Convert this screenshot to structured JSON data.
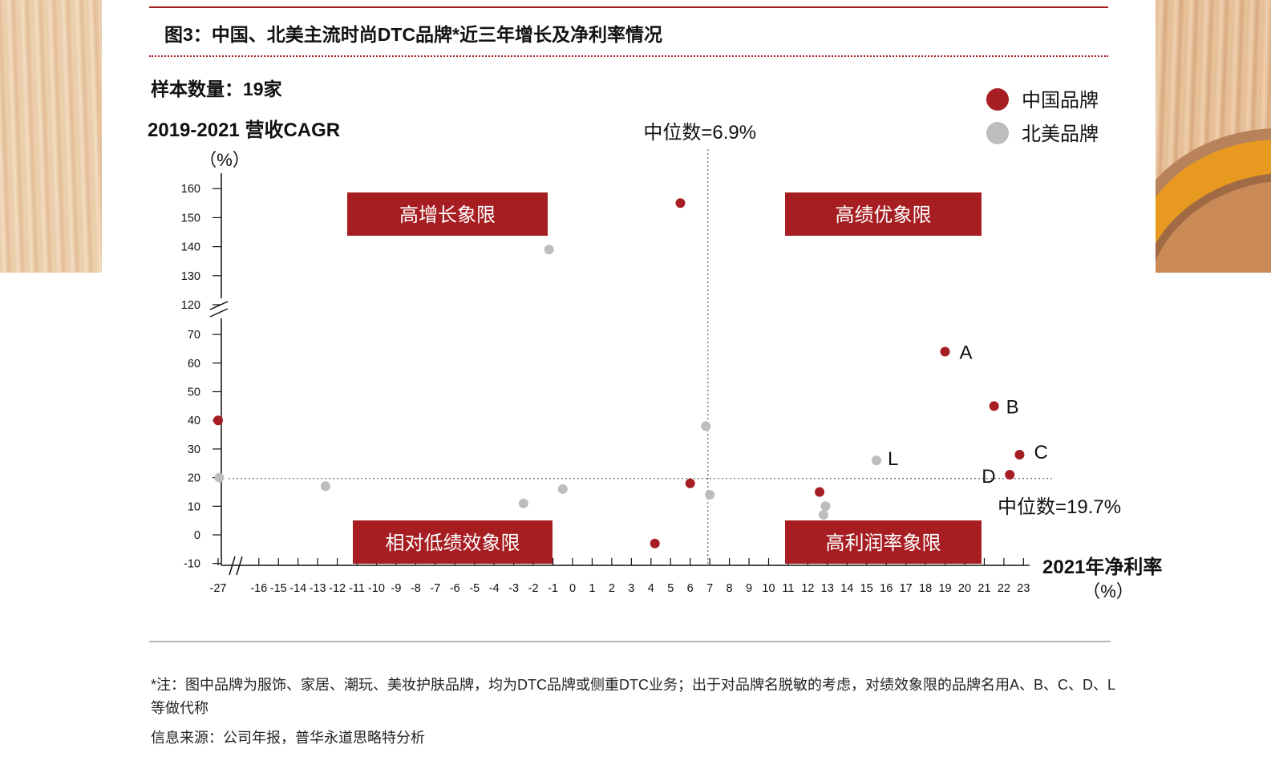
{
  "header": {
    "title": "图3：中国、北美主流时尚DTC品牌*近三年增长及净利率情况",
    "sample": "样本数量：19家"
  },
  "footer": {
    "note": "*注：图中品牌为服饰、家居、潮玩、美妆护肤品牌，均为DTC品牌或侧重DTC业务；出于对品牌名脱敏的考虑，对绩效象限的品牌名用A、B、C、D、L等做代称",
    "source": "信息来源：公司年报，普华永道思略特分析"
  },
  "colors": {
    "china": "#a61e22",
    "north_america": "#bdbdbd",
    "quadrant_bg": "#a61e22",
    "rule": "#a61e22"
  },
  "chart_data": {
    "type": "scatter",
    "ylabel": "2019-2021 营收CAGR",
    "ylabel_unit": "（%）",
    "xlabel": "2021年净利率",
    "xlabel_unit": "（%）",
    "x_ticks": [
      "-27",
      "-16",
      "-15",
      "-14",
      "-13",
      "-12",
      "-11",
      "-10",
      "-9",
      "-8",
      "-7",
      "-6",
      "-5",
      "-4",
      "-3",
      "-2",
      "-1",
      "0",
      "1",
      "2",
      "3",
      "4",
      "5",
      "6",
      "7",
      "8",
      "9",
      "10",
      "11",
      "12",
      "13",
      "14",
      "15",
      "16",
      "17",
      "18",
      "19",
      "20",
      "21",
      "22",
      "23"
    ],
    "y_ticks_lower": [
      "-10",
      "0",
      "10",
      "20",
      "30",
      "40",
      "50",
      "60",
      "70"
    ],
    "y_ticks_upper": [
      "120",
      "130",
      "140",
      "150",
      "160"
    ],
    "x_axis_break": "-27 至 -16",
    "y_axis_break": "70 至 120",
    "median_x": {
      "value": 6.9,
      "label": "中位数=6.9%"
    },
    "median_y": {
      "value": 19.7,
      "label": "中位数=19.7%"
    },
    "quadrants": [
      "高增长象限",
      "高绩优象限",
      "相对低绩效象限",
      "高利润率象限"
    ],
    "legend": [
      "中国品牌",
      "北美品牌"
    ],
    "series": [
      {
        "name": "中国品牌",
        "points": [
          {
            "x": 5.5,
            "y": 155,
            "label": ""
          },
          {
            "x": -27,
            "y": 40,
            "label": ""
          },
          {
            "x": 6.0,
            "y": 18,
            "label": ""
          },
          {
            "x": 4.2,
            "y": -3,
            "label": ""
          },
          {
            "x": 12.6,
            "y": 15,
            "label": ""
          },
          {
            "x": 19.0,
            "y": 64,
            "label": "A"
          },
          {
            "x": 21.5,
            "y": 45,
            "label": "B"
          },
          {
            "x": 22.8,
            "y": 28,
            "label": "C"
          },
          {
            "x": 22.3,
            "y": 21,
            "label": "D"
          }
        ]
      },
      {
        "name": "北美品牌",
        "points": [
          {
            "x": -1.2,
            "y": 139,
            "label": ""
          },
          {
            "x": -26.5,
            "y": 20,
            "label": ""
          },
          {
            "x": -12.6,
            "y": 17,
            "label": ""
          },
          {
            "x": -2.5,
            "y": 11,
            "label": ""
          },
          {
            "x": -0.5,
            "y": 16,
            "label": ""
          },
          {
            "x": 6.8,
            "y": 38,
            "label": ""
          },
          {
            "x": 7.0,
            "y": 14,
            "label": ""
          },
          {
            "x": 12.9,
            "y": 10,
            "label": ""
          },
          {
            "x": 12.8,
            "y": 7,
            "label": ""
          },
          {
            "x": 15.5,
            "y": 26,
            "label": "L"
          }
        ]
      }
    ]
  }
}
